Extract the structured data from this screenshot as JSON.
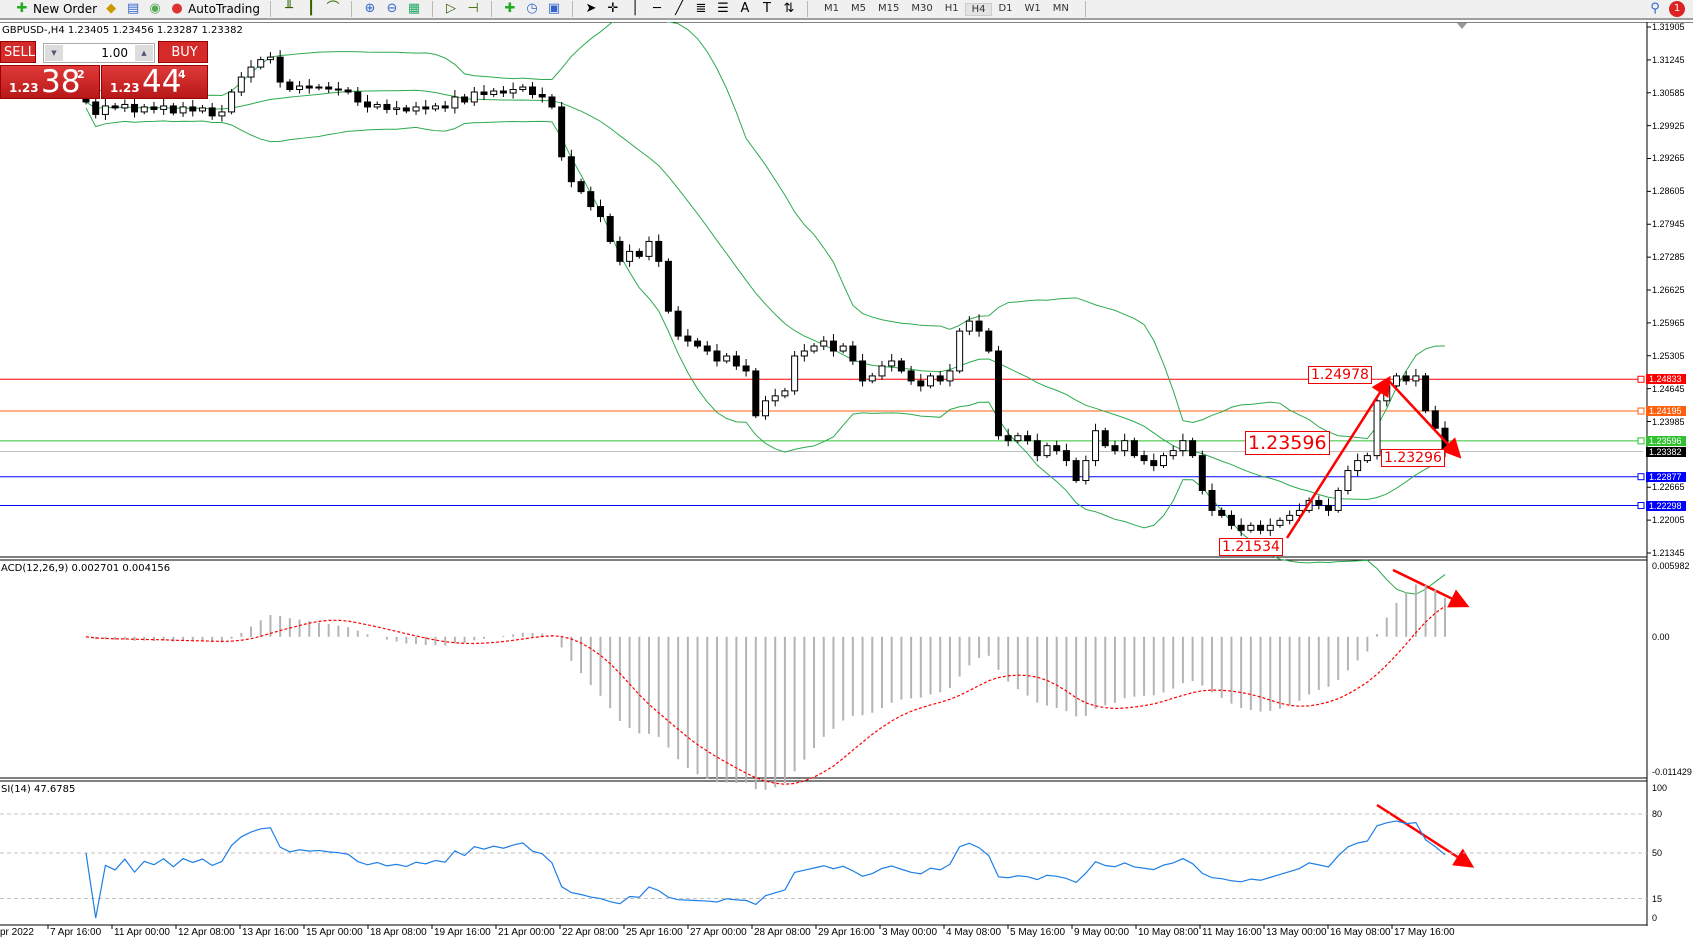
{
  "toolbar": {
    "new_order": "New Order",
    "auto_trading": "AutoTrading",
    "timeframes": [
      "M1",
      "M5",
      "M15",
      "M30",
      "H1",
      "H4",
      "D1",
      "W1",
      "MN"
    ],
    "active_timeframe": "H4",
    "notification_count": "1"
  },
  "chart_info": "GBPUSD-,H4  1.23405 1.23456 1.23287 1.23382",
  "trade_panel": {
    "sell": "SELL",
    "buy": "BUY",
    "lot": "1.00",
    "bid_small": "1.23",
    "bid_big": "38",
    "bid_pip": "2",
    "ask_small": "1.23",
    "ask_big": "44",
    "ask_pip": "4"
  },
  "colors": {
    "bands": "#2eaa4e",
    "macd_hist": "#b4b4b4",
    "macd_signal": "#ff0000",
    "rsi": "#1e7fe6",
    "arrows": "#ff0000"
  },
  "chart_data": [
    {
      "type": "candlestick",
      "symbol": "GBPUSD-",
      "timeframe": "H4",
      "closes": [
        1.304,
        1.3015,
        1.3032,
        1.3028,
        1.3035,
        1.302,
        1.303,
        1.3025,
        1.3032,
        1.3018,
        1.303,
        1.3022,
        1.3028,
        1.3012,
        1.302,
        1.306,
        1.309,
        1.311,
        1.3125,
        1.313,
        1.308,
        1.3065,
        1.3072,
        1.3068,
        1.307,
        1.3066,
        1.3064,
        1.306,
        1.304,
        1.303,
        1.3035,
        1.3025,
        1.3028,
        1.3022,
        1.303,
        1.3026,
        1.3032,
        1.3028,
        1.305,
        1.304,
        1.306,
        1.3055,
        1.3062,
        1.3058,
        1.3065,
        1.307,
        1.3055,
        1.305,
        1.303,
        1.293,
        1.288,
        1.286,
        1.283,
        1.281,
        1.276,
        1.272,
        1.274,
        1.273,
        1.276,
        1.272,
        1.262,
        1.257,
        1.256,
        1.255,
        1.254,
        1.252,
        1.253,
        1.251,
        1.25,
        1.241,
        1.244,
        1.245,
        1.246,
        1.253,
        1.254,
        1.255,
        1.256,
        1.254,
        1.255,
        1.252,
        1.248,
        1.249,
        1.251,
        1.252,
        1.25,
        1.248,
        1.247,
        1.249,
        1.248,
        1.25,
        1.258,
        1.26,
        1.258,
        1.254,
        1.237,
        1.236,
        1.237,
        1.236,
        1.233,
        1.235,
        1.234,
        1.232,
        1.228,
        1.232,
        1.238,
        1.235,
        1.234,
        1.236,
        1.233,
        1.232,
        1.231,
        1.233,
        1.234,
        1.236,
        1.233,
        1.226,
        1.222,
        1.221,
        1.219,
        1.218,
        1.219,
        1.218,
        1.219,
        1.22,
        1.221,
        1.222,
        1.224,
        1.223,
        1.222,
        1.226,
        1.23,
        1.232,
        1.233,
        1.244,
        1.247,
        1.249,
        1.248,
        1.249,
        1.242,
        1.2385,
        1.23382
      ],
      "price_axis": [
        "1.31905",
        "1.31245",
        "1.30585",
        "1.29925",
        "1.29265",
        "1.28605",
        "1.27945",
        "1.27285",
        "1.26625",
        "1.25965",
        "1.25305",
        "1.24645",
        "1.23985",
        "1.22665",
        "1.22005",
        "1.21345"
      ],
      "ylim": [
        1.21345,
        1.31905
      ],
      "indicators": [
        "Bollinger Bands"
      ],
      "levels": [
        {
          "price": "1.24833",
          "color": "#ff0000"
        },
        {
          "price": "1.24195",
          "color": "#ff6010"
        },
        {
          "price": "1.23596",
          "color": "#30c030"
        },
        {
          "price": "1.23382",
          "color": "#000000",
          "bid": true
        },
        {
          "price": "1.22877",
          "color": "#0000ff"
        },
        {
          "price": "1.22298",
          "color": "#0000ff"
        }
      ],
      "annotations": [
        "1.24978",
        "1.23596",
        "1.23296",
        "1.21534"
      ],
      "time_axis": [
        "pr 2022",
        "7 Apr 16:00",
        "11 Apr 00:00",
        "12 Apr 08:00",
        "13 Apr 16:00",
        "15 Apr 00:00",
        "18 Apr 08:00",
        "19 Apr 16:00",
        "21 Apr 00:00",
        "22 Apr 08:00",
        "25 Apr 16:00",
        "27 Apr 00:00",
        "28 Apr 08:00",
        "29 Apr 16:00",
        "3 May 00:00",
        "4 May 08:00",
        "5 May 16:00",
        "9 May 00:00",
        "10 May 08:00",
        "11 May 16:00",
        "13 May 00:00",
        "16 May 08:00",
        "17 May 16:00"
      ]
    },
    {
      "type": "bar+line",
      "title": "ACD(12,26,9) 0.002701 0.004156",
      "axis": [
        "0.005982",
        "0.00",
        "-0.011429"
      ],
      "ylim": [
        -0.011429,
        0.005982
      ]
    },
    {
      "type": "line",
      "title": "SI(14) 47.6785",
      "axis": [
        "100",
        "80",
        "50",
        "15",
        "0"
      ],
      "levels": [
        80,
        50,
        15
      ],
      "ylim": [
        0,
        100
      ]
    }
  ]
}
